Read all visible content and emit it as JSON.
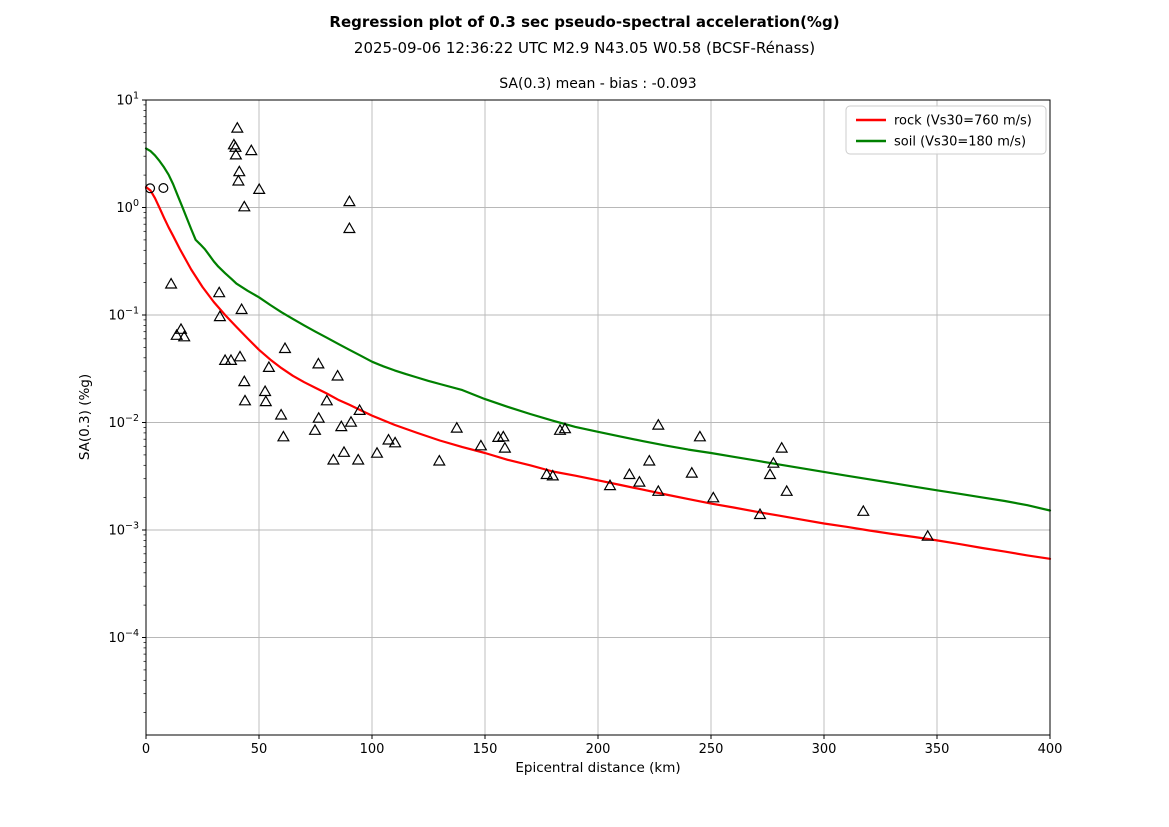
{
  "figure": {
    "suptitle": "Regression plot of 0.3 sec pseudo-spectral acceleration(%g)",
    "subtitle": "2025-09-06 12:36:22 UTC M2.9 N43.05 W0.58 (BCSF-Rénass)"
  },
  "chart_data": {
    "type": "scatter",
    "title": "SA(0.3) mean - bias : -0.093",
    "xlabel": "Epicentral distance (km)",
    "ylabel": "SA(0.3) (%g)",
    "xlim": [
      0,
      400
    ],
    "ylim_log_exponents": [
      -4.907,
      1
    ],
    "xticks": [
      "0",
      "50",
      "100",
      "150",
      "200",
      "250",
      "300",
      "350",
      "400"
    ],
    "yticks": [
      {
        "exp": 1,
        "label": "1"
      },
      {
        "exp": 0,
        "label": "0"
      },
      {
        "exp": -1,
        "label": "−1"
      },
      {
        "exp": -2,
        "label": "−2"
      },
      {
        "exp": -3,
        "label": "−3"
      },
      {
        "exp": -4,
        "label": "−4"
      }
    ],
    "grid": true,
    "grid_color": "#b8b8b8",
    "legend": {
      "position": "upper right",
      "entries": [
        {
          "label": "rock (Vs30=760 m/s)",
          "color": "#ff0000"
        },
        {
          "label": "soil (Vs30=180 m/s)",
          "color": "#008000"
        }
      ]
    },
    "series": [
      {
        "name": "station-observations-triangles",
        "marker": "triangle",
        "color": "#000000",
        "points": [
          [
            40.4,
            5.5
          ],
          [
            38.9,
            3.85
          ],
          [
            39.6,
            3.65
          ],
          [
            39.8,
            3.1
          ],
          [
            46.6,
            3.4
          ],
          [
            41.3,
            2.16
          ],
          [
            40.9,
            1.77
          ],
          [
            50.1,
            1.48
          ],
          [
            43.5,
            1.02
          ],
          [
            90,
            1.14
          ],
          [
            90,
            0.64
          ],
          [
            11.1,
            0.195
          ],
          [
            32.4,
            0.162
          ],
          [
            32.7,
            0.097
          ],
          [
            15.5,
            0.074
          ],
          [
            13.6,
            0.065
          ],
          [
            16.9,
            0.063
          ],
          [
            42.3,
            0.113
          ],
          [
            61.5,
            0.049
          ],
          [
            35,
            0.038
          ],
          [
            37.6,
            0.038
          ],
          [
            41.6,
            0.041
          ],
          [
            54.4,
            0.0327
          ],
          [
            76.3,
            0.0352
          ],
          [
            84.8,
            0.0272
          ],
          [
            43.5,
            0.0241
          ],
          [
            52.7,
            0.0195
          ],
          [
            53,
            0.0157
          ],
          [
            43.8,
            0.016
          ],
          [
            80,
            0.016
          ],
          [
            59.8,
            0.0118
          ],
          [
            94.5,
            0.013
          ],
          [
            76.4,
            0.011
          ],
          [
            74.8,
            0.0085
          ],
          [
            86.4,
            0.0092
          ],
          [
            90.7,
            0.0101
          ],
          [
            60.8,
            0.0074
          ],
          [
            107.3,
            0.0069
          ],
          [
            110.2,
            0.0065
          ],
          [
            82.9,
            0.0045
          ],
          [
            87.6,
            0.0053
          ],
          [
            93.9,
            0.0045
          ],
          [
            102.2,
            0.0052
          ],
          [
            129.8,
            0.0044
          ],
          [
            137.5,
            0.0089
          ],
          [
            148.2,
            0.0061
          ],
          [
            155.9,
            0.0073
          ],
          [
            158.1,
            0.0074
          ],
          [
            158.8,
            0.0058
          ],
          [
            183.2,
            0.0085
          ],
          [
            185.4,
            0.0088
          ],
          [
            177.3,
            0.0033
          ],
          [
            180,
            0.0032
          ],
          [
            205.3,
            0.0026
          ],
          [
            213.9,
            0.0033
          ],
          [
            218.3,
            0.0028
          ],
          [
            222.7,
            0.0044
          ],
          [
            226.7,
            0.0095
          ],
          [
            226.7,
            0.0023
          ],
          [
            241.5,
            0.0034
          ],
          [
            245.1,
            0.0074
          ],
          [
            251,
            0.002
          ],
          [
            271.7,
            0.0014
          ],
          [
            276.1,
            0.0033
          ],
          [
            277.6,
            0.0042
          ],
          [
            281.3,
            0.0058
          ],
          [
            283.5,
            0.0023
          ],
          [
            317.4,
            0.0015
          ],
          [
            345.9,
            0.00088
          ]
        ]
      },
      {
        "name": "station-observations-circles",
        "marker": "circle",
        "color": "#000000",
        "points": [
          [
            1.8,
            1.51
          ],
          [
            7.7,
            1.52
          ]
        ]
      },
      {
        "name": "rock-regression-curve",
        "marker": "line",
        "color": "#ff0000",
        "points": [
          [
            0,
            1.55
          ],
          [
            2,
            1.44
          ],
          [
            4,
            1.22
          ],
          [
            6,
            0.99
          ],
          [
            8,
            0.8
          ],
          [
            10,
            0.655
          ],
          [
            12,
            0.545
          ],
          [
            15,
            0.41
          ],
          [
            18,
            0.315
          ],
          [
            20,
            0.265
          ],
          [
            25,
            0.182
          ],
          [
            30,
            0.132
          ],
          [
            35,
            0.1
          ],
          [
            40,
            0.0775
          ],
          [
            45,
            0.0605
          ],
          [
            50,
            0.0475
          ],
          [
            55,
            0.0385
          ],
          [
            60,
            0.032
          ],
          [
            65,
            0.0272
          ],
          [
            70,
            0.0237
          ],
          [
            75,
            0.021
          ],
          [
            80,
            0.0186
          ],
          [
            85,
            0.0163
          ],
          [
            90,
            0.0146
          ],
          [
            95,
            0.013
          ],
          [
            100,
            0.0116
          ],
          [
            110,
            0.0095
          ],
          [
            120,
            0.008
          ],
          [
            130,
            0.0068
          ],
          [
            140,
            0.0059
          ],
          [
            150,
            0.0052
          ],
          [
            160,
            0.0045
          ],
          [
            170,
            0.004
          ],
          [
            180,
            0.0035
          ],
          [
            190,
            0.0032
          ],
          [
            200,
            0.0029
          ],
          [
            210,
            0.00262
          ],
          [
            220,
            0.00237
          ],
          [
            230,
            0.00214
          ],
          [
            240,
            0.00194
          ],
          [
            250,
            0.00176
          ],
          [
            260,
            0.00162
          ],
          [
            270,
            0.00148
          ],
          [
            280,
            0.00136
          ],
          [
            290,
            0.00125
          ],
          [
            300,
            0.00115
          ],
          [
            310,
            0.00107
          ],
          [
            320,
            0.00099
          ],
          [
            330,
            0.00092
          ],
          [
            340,
            0.00086
          ],
          [
            350,
            0.0008
          ],
          [
            360,
            0.00074
          ],
          [
            370,
            0.00068
          ],
          [
            380,
            0.00063
          ],
          [
            390,
            0.00058
          ],
          [
            400,
            0.00054
          ]
        ]
      },
      {
        "name": "soil-regression-curve",
        "marker": "line",
        "color": "#008000",
        "points": [
          [
            0,
            3.55
          ],
          [
            2,
            3.35
          ],
          [
            4,
            3.05
          ],
          [
            6,
            2.7
          ],
          [
            8,
            2.36
          ],
          [
            10,
            2.02
          ],
          [
            12,
            1.65
          ],
          [
            14,
            1.3
          ],
          [
            16,
            1.02
          ],
          [
            18,
            0.8
          ],
          [
            20,
            0.63
          ],
          [
            22,
            0.5
          ],
          [
            24,
            0.455
          ],
          [
            26,
            0.41
          ],
          [
            28,
            0.36
          ],
          [
            30,
            0.315
          ],
          [
            32,
            0.282
          ],
          [
            35,
            0.245
          ],
          [
            38,
            0.215
          ],
          [
            40,
            0.196
          ],
          [
            45,
            0.168
          ],
          [
            50,
            0.146
          ],
          [
            55,
            0.124
          ],
          [
            60,
            0.106
          ],
          [
            65,
            0.092
          ],
          [
            70,
            0.08
          ],
          [
            75,
            0.07
          ],
          [
            80,
            0.0615
          ],
          [
            85,
            0.054
          ],
          [
            90,
            0.0475
          ],
          [
            95,
            0.0418
          ],
          [
            100,
            0.0368
          ],
          [
            105,
            0.0333
          ],
          [
            110,
            0.0305
          ],
          [
            115,
            0.0282
          ],
          [
            120,
            0.0262
          ],
          [
            125,
            0.0244
          ],
          [
            130,
            0.0228
          ],
          [
            140,
            0.02
          ],
          [
            150,
            0.0165
          ],
          [
            160,
            0.014
          ],
          [
            170,
            0.012
          ],
          [
            180,
            0.0104
          ],
          [
            190,
            0.0091
          ],
          [
            200,
            0.0082
          ],
          [
            210,
            0.0074
          ],
          [
            220,
            0.0067
          ],
          [
            230,
            0.0061
          ],
          [
            240,
            0.0056
          ],
          [
            250,
            0.0052
          ],
          [
            260,
            0.0048
          ],
          [
            270,
            0.00442
          ],
          [
            280,
            0.00408
          ],
          [
            290,
            0.00376
          ],
          [
            300,
            0.00347
          ],
          [
            310,
            0.0032
          ],
          [
            320,
            0.00296
          ],
          [
            330,
            0.00274
          ],
          [
            340,
            0.00253
          ],
          [
            350,
            0.00234
          ],
          [
            360,
            0.00217
          ],
          [
            370,
            0.00201
          ],
          [
            380,
            0.00186
          ],
          [
            390,
            0.0017
          ],
          [
            400,
            0.00152
          ]
        ]
      }
    ]
  }
}
